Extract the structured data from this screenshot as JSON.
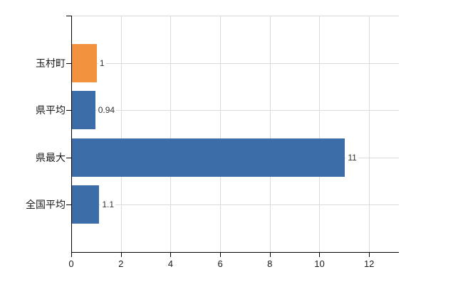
{
  "chart_data": {
    "type": "bar",
    "orientation": "horizontal",
    "categories": [
      "玉村町",
      "県平均",
      "県最大",
      "全国平均"
    ],
    "values": [
      1,
      0.94,
      11,
      1.1
    ],
    "value_labels": [
      "1",
      "0.94",
      "11",
      "1.1"
    ],
    "bar_colors": [
      "#f2923e",
      "#3d6da8",
      "#3d6da8",
      "#3d6da8"
    ],
    "highlight_color": "#f2923e",
    "default_color": "#3d6da8",
    "xlim": [
      0,
      13.2
    ],
    "x_ticks": [
      0,
      2,
      4,
      6,
      8,
      10,
      12
    ],
    "x_tick_labels": [
      "0",
      "2",
      "4",
      "6",
      "8",
      "10",
      "12"
    ],
    "grid": true,
    "legend_position": "none",
    "background_color": "#ffffff",
    "grid_color": "#d9ddd9",
    "axis_color": "#000000",
    "text_color": "#1a1a1a",
    "value_label_color": "#333333"
  }
}
